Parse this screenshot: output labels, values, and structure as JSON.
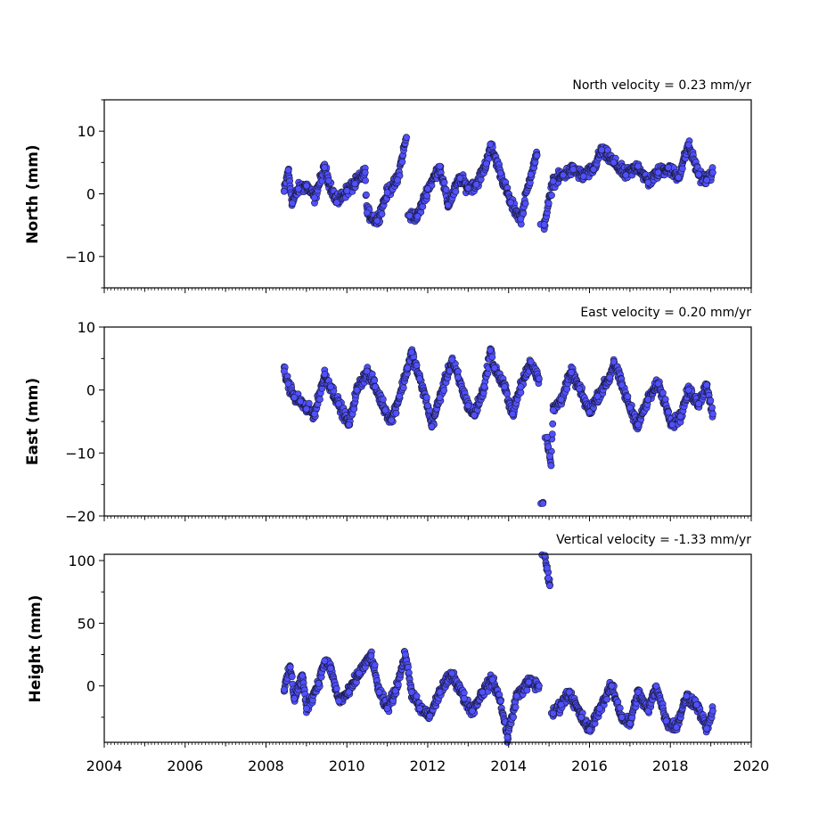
{
  "chart_data": [
    {
      "type": "scatter",
      "title": "North velocity = 0.23 mm/yr",
      "ylabel": "North (mm)",
      "xlabel": "",
      "xlim": [
        2004,
        2020
      ],
      "ylim": [
        -15,
        15
      ],
      "yticks": [
        -10,
        0,
        10
      ],
      "xticks": [
        2004,
        2006,
        2008,
        2010,
        2012,
        2014,
        2016,
        2018,
        2020
      ],
      "show_xtick_labels": false,
      "grid": false,
      "marker_color": "#5050ff",
      "series": [
        {
          "values": [
            [
              2008.45,
              0.4
            ],
            [
              2008.55,
              3.8
            ],
            [
              2008.65,
              -1.5
            ],
            [
              2008.8,
              0.8
            ],
            [
              2009.0,
              1.3
            ],
            [
              2009.2,
              -0.6
            ],
            [
              2009.45,
              4.2
            ],
            [
              2009.55,
              2.1
            ],
            [
              2009.75,
              -1.4
            ],
            [
              2010.0,
              0.5
            ],
            [
              2010.2,
              1.6
            ],
            [
              2010.45,
              3.4
            ],
            [
              2010.5,
              -3.0
            ],
            [
              2010.75,
              -4.3
            ],
            [
              2011.0,
              0.2
            ],
            [
              2011.25,
              2.2
            ],
            [
              2011.47,
              9.0
            ],
            [
              2011.55,
              -3.5
            ],
            [
              2011.75,
              -3.6
            ],
            [
              2012.0,
              0.8
            ],
            [
              2012.3,
              4.4
            ],
            [
              2012.5,
              -1.8
            ],
            [
              2012.8,
              2.5
            ],
            [
              2013.0,
              0.9
            ],
            [
              2013.2,
              1.5
            ],
            [
              2013.45,
              4.8
            ],
            [
              2013.55,
              7.9
            ],
            [
              2013.8,
              3.3
            ],
            [
              2014.05,
              -1.4
            ],
            [
              2014.3,
              -4.0
            ],
            [
              2014.55,
              3.1
            ],
            [
              2014.7,
              6.1
            ],
            [
              2014.88,
              -4.9
            ],
            [
              2015.1,
              2.0
            ],
            [
              2015.35,
              3.0
            ],
            [
              2015.6,
              3.9
            ],
            [
              2015.85,
              2.8
            ],
            [
              2016.1,
              3.9
            ],
            [
              2016.3,
              7.0
            ],
            [
              2016.6,
              5.0
            ],
            [
              2016.9,
              3.0
            ],
            [
              2017.2,
              4.4
            ],
            [
              2017.45,
              1.8
            ],
            [
              2017.7,
              3.4
            ],
            [
              2017.95,
              4.2
            ],
            [
              2018.2,
              2.6
            ],
            [
              2018.45,
              7.8
            ],
            [
              2018.7,
              3.1
            ],
            [
              2018.9,
              2.2
            ],
            [
              2019.05,
              3.4
            ]
          ]
        }
      ]
    },
    {
      "type": "scatter",
      "title": "East velocity = 0.20 mm/yr",
      "ylabel": "East (mm)",
      "xlabel": "",
      "xlim": [
        2004,
        2020
      ],
      "ylim": [
        -20,
        10
      ],
      "yticks": [
        -20,
        -10,
        0,
        10
      ],
      "xticks": [
        2004,
        2006,
        2008,
        2010,
        2012,
        2014,
        2016,
        2018,
        2020
      ],
      "show_xtick_labels": false,
      "grid": false,
      "marker_color": "#5050ff",
      "series": [
        {
          "values": [
            [
              2008.45,
              3.0
            ],
            [
              2008.55,
              1.0
            ],
            [
              2008.7,
              -1.2
            ],
            [
              2008.85,
              -1.8
            ],
            [
              2009.0,
              -3.0
            ],
            [
              2009.2,
              -3.8
            ],
            [
              2009.45,
              2.5
            ],
            [
              2009.6,
              0.5
            ],
            [
              2009.8,
              -2.2
            ],
            [
              2010.05,
              -5.5
            ],
            [
              2010.25,
              0.0
            ],
            [
              2010.5,
              3.0
            ],
            [
              2010.7,
              0.5
            ],
            [
              2010.95,
              -3.2
            ],
            [
              2011.1,
              -4.8
            ],
            [
              2011.3,
              -1.0
            ],
            [
              2011.5,
              3.5
            ],
            [
              2011.6,
              6.0
            ],
            [
              2011.8,
              1.8
            ],
            [
              2012.0,
              -2.5
            ],
            [
              2012.1,
              -5.8
            ],
            [
              2012.3,
              -1.2
            ],
            [
              2012.6,
              4.8
            ],
            [
              2012.75,
              2.0
            ],
            [
              2013.0,
              -2.5
            ],
            [
              2013.15,
              -4.0
            ],
            [
              2013.4,
              0.5
            ],
            [
              2013.55,
              6.3
            ],
            [
              2013.65,
              3.5
            ],
            [
              2013.9,
              0.5
            ],
            [
              2014.1,
              -3.8
            ],
            [
              2014.3,
              0.5
            ],
            [
              2014.55,
              4.5
            ],
            [
              2014.75,
              1.8
            ],
            [
              2014.85,
              -18.0
            ],
            [
              2014.95,
              -7.5
            ],
            [
              2014.98,
              -9.0
            ],
            [
              2015.02,
              -10.5
            ],
            [
              2015.05,
              -12.0
            ],
            [
              2015.1,
              -3.2
            ],
            [
              2015.3,
              -1.5
            ],
            [
              2015.55,
              2.8
            ],
            [
              2015.75,
              0.2
            ],
            [
              2016.0,
              -3.5
            ],
            [
              2016.2,
              -1.0
            ],
            [
              2016.5,
              2.0
            ],
            [
              2016.6,
              4.5
            ],
            [
              2016.8,
              0.8
            ],
            [
              2017.0,
              -2.8
            ],
            [
              2017.2,
              -5.5
            ],
            [
              2017.45,
              -1.5
            ],
            [
              2017.7,
              1.0
            ],
            [
              2017.95,
              -3.5
            ],
            [
              2018.05,
              -5.5
            ],
            [
              2018.25,
              -4.2
            ],
            [
              2018.45,
              0.0
            ],
            [
              2018.7,
              -2.2
            ],
            [
              2018.9,
              0.8
            ],
            [
              2019.05,
              -3.8
            ]
          ]
        }
      ]
    },
    {
      "type": "scatter",
      "title": "Vertical velocity = -1.33 mm/yr",
      "ylabel": "Height (mm)",
      "xlabel": "",
      "xlim": [
        2004,
        2020
      ],
      "ylim": [
        -45,
        105
      ],
      "yticks": [
        0,
        50,
        100
      ],
      "xticks": [
        2004,
        2006,
        2008,
        2010,
        2012,
        2014,
        2016,
        2018,
        2020
      ],
      "show_xtick_labels": true,
      "grid": false,
      "marker_color": "#5050ff",
      "series": [
        {
          "values": [
            [
              2008.45,
              -3.0
            ],
            [
              2008.6,
              15.0
            ],
            [
              2008.7,
              -10.0
            ],
            [
              2008.9,
              8.0
            ],
            [
              2009.0,
              -18.0
            ],
            [
              2009.3,
              2.0
            ],
            [
              2009.45,
              20.0
            ],
            [
              2009.6,
              14.0
            ],
            [
              2009.8,
              -12.0
            ],
            [
              2010.05,
              -5.0
            ],
            [
              2010.3,
              10.0
            ],
            [
              2010.6,
              24.0
            ],
            [
              2010.8,
              -5.0
            ],
            [
              2011.0,
              -18.0
            ],
            [
              2011.2,
              -4.0
            ],
            [
              2011.45,
              25.0
            ],
            [
              2011.6,
              -5.0
            ],
            [
              2011.8,
              -18.0
            ],
            [
              2012.05,
              -24.0
            ],
            [
              2012.3,
              -5.0
            ],
            [
              2012.6,
              10.0
            ],
            [
              2012.9,
              -10.0
            ],
            [
              2013.1,
              -20.0
            ],
            [
              2013.35,
              -5.0
            ],
            [
              2013.6,
              5.0
            ],
            [
              2013.8,
              -12.0
            ],
            [
              2013.97,
              -41.0
            ],
            [
              2014.2,
              -8.0
            ],
            [
              2014.5,
              3.0
            ],
            [
              2014.75,
              0.0
            ],
            [
              2014.9,
              104.0
            ],
            [
              2014.95,
              94.0
            ],
            [
              2014.98,
              86.0
            ],
            [
              2015.02,
              80.0
            ],
            [
              2015.1,
              -22.0
            ],
            [
              2015.3,
              -15.0
            ],
            [
              2015.5,
              -5.0
            ],
            [
              2015.8,
              -25.0
            ],
            [
              2016.0,
              -35.0
            ],
            [
              2016.25,
              -18.0
            ],
            [
              2016.55,
              0.0
            ],
            [
              2016.8,
              -25.0
            ],
            [
              2017.0,
              -30.0
            ],
            [
              2017.2,
              -5.0
            ],
            [
              2017.45,
              -20.0
            ],
            [
              2017.65,
              0.0
            ],
            [
              2017.9,
              -28.0
            ],
            [
              2018.15,
              -33.0
            ],
            [
              2018.4,
              -8.0
            ],
            [
              2018.65,
              -15.0
            ],
            [
              2018.9,
              -34.0
            ],
            [
              2019.05,
              -20.0
            ]
          ]
        }
      ]
    }
  ]
}
